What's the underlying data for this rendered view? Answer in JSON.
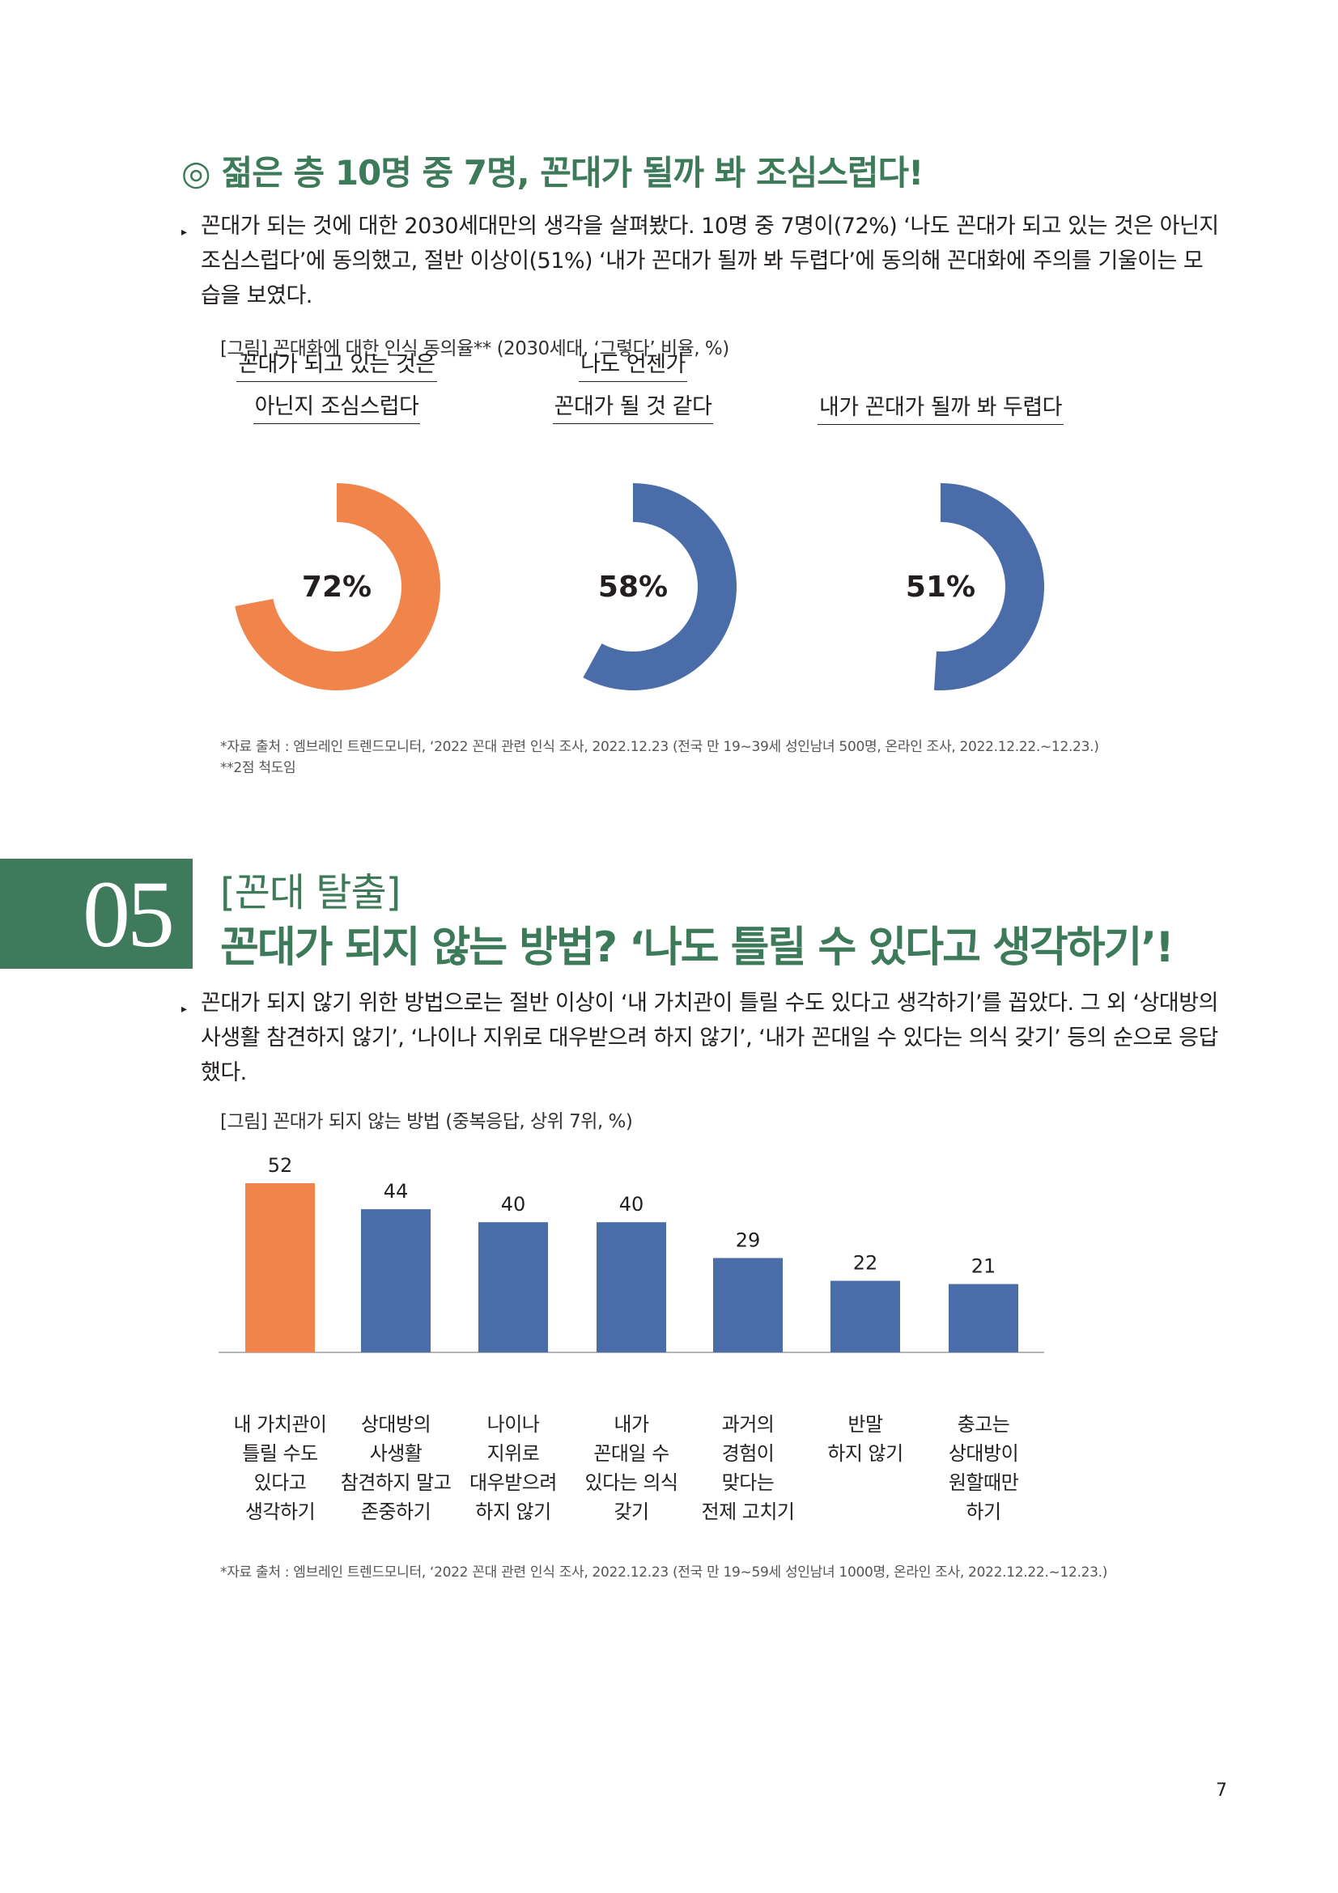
{
  "section1": {
    "mark": "◎",
    "title": "젊은 층 10명 중 7명, 꼰대가 될까 봐 조심스럽다!",
    "bullet": "꼰대가 되는 것에 대한 2030세대만의 생각을 살펴봤다. 10명 중 7명이(72%) ‘나도 꼰대가 되고 있는 것은 아닌지 조심스럽다’에 동의했고, 절반 이상이(51%) ‘내가 꼰대가 될까 봐 두렵다’에 동의해 꼰대화에 주의를 기울이는 모습을 보였다.",
    "figure_caption": "[그림] 꼰대화에 대한 인식 동의율** (2030세대, ‘그렇다’ 비율, %)",
    "source": "*자료 출처 : 엠브레인 트렌드모니터, ‘2022 꼰대 관련 인식 조사, 2022.12.23 (전국 만 19~39세 성인남녀 500명, 온라인 조사, 2022.12.22.~12.23.)",
    "note": "**2점 척도임"
  },
  "donuts": [
    {
      "label_lines": [
        "꼰대가 되고 있는 것은",
        "아닌지 조심스럽다"
      ],
      "value": 72,
      "value_label": "72%",
      "color": "#f0844a"
    },
    {
      "label_lines": [
        "나도 언젠가",
        "꼰대가 될 것 같다"
      ],
      "value": 58,
      "value_label": "58%",
      "color": "#4a6ca8"
    },
    {
      "label_lines": [
        "내가 꼰대가 될까 봐 두렵다"
      ],
      "value": 51,
      "value_label": "51%",
      "color": "#4a6ca8"
    }
  ],
  "section2": {
    "number": "05",
    "subtitle": "[꼰대 탈출]",
    "title": "꼰대가 되지 않는 방법? ‘나도 틀릴 수 있다고 생각하기’!",
    "bullet": "꼰대가 되지 않기 위한 방법으로는 절반 이상이 ‘내 가치관이 틀릴 수도 있다고 생각하기’를 꼽았다. 그 외 ‘상대방의 사생활 참견하지 않기’, ‘나이나 지위로 대우받으려 하지 않기’, ‘내가 꼰대일 수 있다는 의식 갖기’ 등의 순으로 응답했다.",
    "figure_caption": "[그림] 꼰대가 되지 않는 방법 (중복응답, 상위 7위, %)",
    "source": "*자료 출처 : 엠브레인 트렌드모니터, ‘2022 꼰대 관련 인식 조사, 2022.12.23 (전국 만 19~59세 성인남녀 1000명, 온라인 조사, 2022.12.22.~12.23.)"
  },
  "chart_data": {
    "type": "bar",
    "categories": [
      "내 가치관이\n틀릴 수도\n있다고\n생각하기",
      "상대방의\n사생활\n참견하지 말고\n존중하기",
      "나이나\n지위로\n대우받으려\n하지 않기",
      "내가\n꼰대일 수\n있다는 의식\n갖기",
      "과거의\n경험이\n맞다는\n전제 고치기",
      "반말\n하지 않기",
      "충고는\n상대방이\n원할때만\n하기"
    ],
    "values": [
      52,
      44,
      40,
      40,
      29,
      22,
      21
    ],
    "colors": [
      "#f0844a",
      "#4a6ca8",
      "#4a6ca8",
      "#4a6ca8",
      "#4a6ca8",
      "#4a6ca8",
      "#4a6ca8"
    ],
    "ylim": [
      0,
      60
    ]
  },
  "page_number": "7"
}
